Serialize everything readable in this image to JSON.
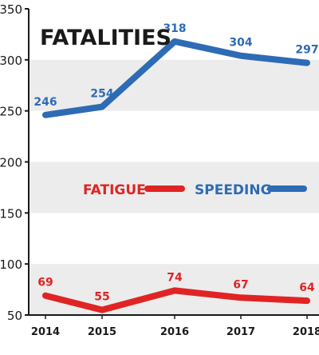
{
  "chart_data": {
    "type": "line",
    "title": "FATALITIES",
    "categories": [
      "2014",
      "2015",
      "2016",
      "2017",
      "2018"
    ],
    "ylim": [
      50,
      350
    ],
    "yticks": [
      50,
      100,
      150,
      200,
      250,
      300,
      350
    ],
    "grid": "alternating horizontal bands",
    "legend_position": "middle-right",
    "series": [
      {
        "name": "SPEEDING",
        "color": "#2e6bb5",
        "values": [
          246,
          254,
          318,
          304,
          297
        ]
      },
      {
        "name": "FATIGUE",
        "color": "#e02424",
        "values": [
          69,
          55,
          74,
          67,
          64
        ]
      }
    ]
  },
  "colors": {
    "axis": "#1a1a1a",
    "band": "#ececec"
  }
}
